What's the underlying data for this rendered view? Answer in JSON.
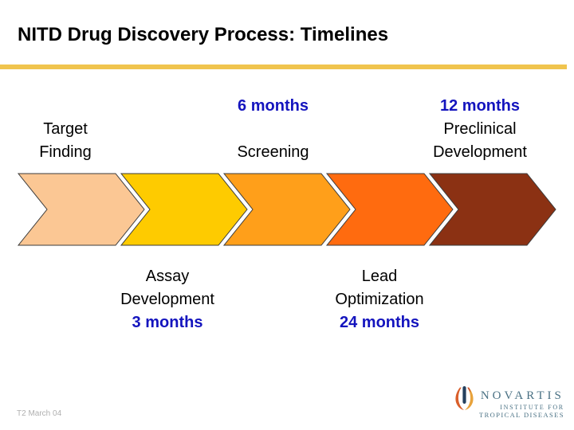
{
  "slide": {
    "title": "NITD Drug Discovery Process: Timelines",
    "footer_note": "T2 March 04"
  },
  "palette": {
    "title_text": "#000000",
    "rule_gold": "#F0C44E",
    "stage_name_text": "#000000",
    "duration_text": "#1414BE",
    "chevron_outline": "#3B3B3B",
    "footer_text": "#AFAFAF",
    "logo_text": "#4A7184",
    "logo_flame_left": "#D95F2B",
    "logo_flame_right": "#E8A33C",
    "logo_flame_bar": "#24405E"
  },
  "process": {
    "type": "chevron-flow",
    "stages": [
      {
        "name_lines": [
          "Target",
          "Finding"
        ],
        "duration": null,
        "label_position": "above",
        "color": "#FBC794"
      },
      {
        "name_lines": [
          "Assay",
          "Development"
        ],
        "duration": "3 months",
        "label_position": "below",
        "color": "#FECB00"
      },
      {
        "name_lines": [
          "Screening"
        ],
        "duration": "6 months",
        "label_position": "above",
        "color": "#FF9F1A"
      },
      {
        "name_lines": [
          "Lead",
          "Optimization"
        ],
        "duration": "24 months",
        "label_position": "below",
        "color": "#FF6B0F"
      },
      {
        "name_lines": [
          "Preclinical",
          "Development"
        ],
        "duration": "12 months",
        "label_position": "above",
        "color": "#8B3113"
      }
    ]
  },
  "logo": {
    "brand": "NOVARTIS",
    "sub_line1": "INSTITUTE FOR",
    "sub_line2": "TROPICAL DISEASES",
    "icon": "flame-icon"
  }
}
